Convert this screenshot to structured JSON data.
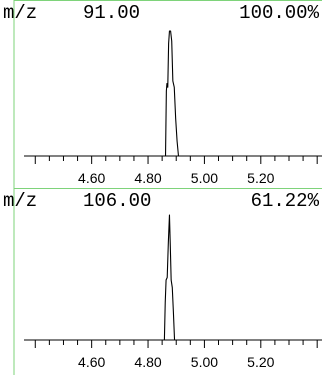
{
  "chart_data": [
    {
      "type": "line",
      "mz_label": "m/z",
      "mz": "91.00",
      "relative_abundance": "100.00%",
      "x_ticks": [
        "4.60",
        "4.80",
        "5.00",
        "5.20"
      ],
      "xlim": [
        4.36,
        5.41
      ],
      "ylim": [
        0,
        100
      ],
      "series": [
        {
          "x": [
            4.853,
            4.862,
            4.865,
            4.867,
            4.87,
            4.873,
            4.876,
            4.88,
            4.884,
            4.888,
            4.893,
            4.898,
            4.903,
            4.908,
            4.912
          ],
          "y": [
            0,
            0,
            52,
            58,
            55,
            90,
            100,
            100,
            92,
            60,
            55,
            30,
            12,
            0,
            0
          ]
        }
      ]
    },
    {
      "type": "line",
      "mz_label": "m/z",
      "mz": "106.00",
      "relative_abundance": "61.22%",
      "x_ticks": [
        "4.60",
        "4.80",
        "5.00",
        "5.20"
      ],
      "xlim": [
        4.36,
        5.41
      ],
      "ylim": [
        0,
        100
      ],
      "series": [
        {
          "x": [
            4.853,
            4.858,
            4.861,
            4.864,
            4.868,
            4.872,
            4.876,
            4.879,
            4.882,
            4.886,
            4.89,
            4.894,
            4.897
          ],
          "y": [
            0,
            0,
            30,
            48,
            50,
            78,
            100,
            75,
            48,
            42,
            22,
            0,
            0
          ]
        }
      ]
    }
  ]
}
